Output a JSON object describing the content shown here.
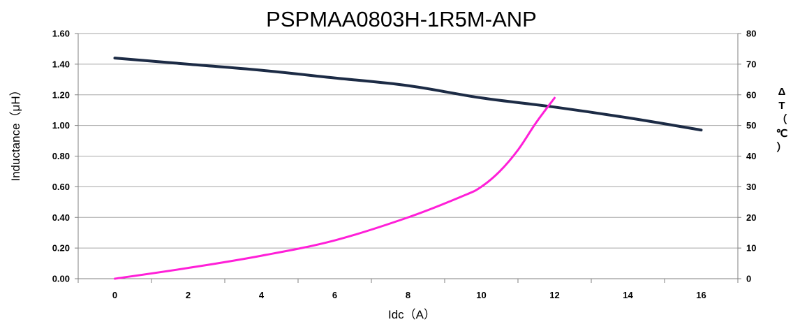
{
  "chart_data": {
    "type": "line",
    "title": "PSPMAA0803H-1R5M-ANP",
    "xlabel": "Idc（A）",
    "ylabel": "Inductance（μH）",
    "y2label": "ΔT（℃）",
    "y2label_chars": [
      "Δ",
      "T",
      "（",
      "℃",
      "）"
    ],
    "xlim": [
      -1,
      17
    ],
    "xticks": [
      0,
      2,
      4,
      6,
      8,
      10,
      12,
      14,
      16
    ],
    "xtick_labels": [
      "0",
      "2",
      "4",
      "6",
      "8",
      "10",
      "12",
      "14",
      "16"
    ],
    "ylim": [
      0,
      1.6
    ],
    "yticks": [
      0,
      0.2,
      0.4,
      0.6,
      0.8,
      1.0,
      1.2,
      1.4,
      1.6
    ],
    "ytick_labels": [
      "0.00",
      "0.20",
      "0.40",
      "0.60",
      "0.80",
      "1.00",
      "1.20",
      "1.40",
      "1.60"
    ],
    "y2lim": [
      0,
      80
    ],
    "y2ticks": [
      0,
      10,
      20,
      30,
      40,
      50,
      60,
      70,
      80
    ],
    "y2tick_labels": [
      "0",
      "10",
      "20",
      "30",
      "40",
      "50",
      "60",
      "70",
      "80"
    ],
    "grid": true,
    "legend": "none",
    "series": [
      {
        "axis": "left",
        "color": "#1c2b45",
        "points": [
          [
            0,
            1.44
          ],
          [
            2,
            1.4
          ],
          [
            4,
            1.36
          ],
          [
            6,
            1.31
          ],
          [
            8,
            1.26
          ],
          [
            10,
            1.18
          ],
          [
            12,
            1.12
          ],
          [
            14,
            1.05
          ],
          [
            16,
            0.97
          ]
        ]
      },
      {
        "axis": "right",
        "color": "#ff1fd8",
        "points": [
          [
            0,
            0
          ],
          [
            2,
            3.5
          ],
          [
            4,
            7.5
          ],
          [
            6,
            12.5
          ],
          [
            8,
            20
          ],
          [
            9.5,
            27
          ],
          [
            10,
            30
          ],
          [
            10.5,
            35
          ],
          [
            11,
            42
          ],
          [
            11.5,
            51
          ],
          [
            12,
            59
          ]
        ]
      }
    ]
  }
}
